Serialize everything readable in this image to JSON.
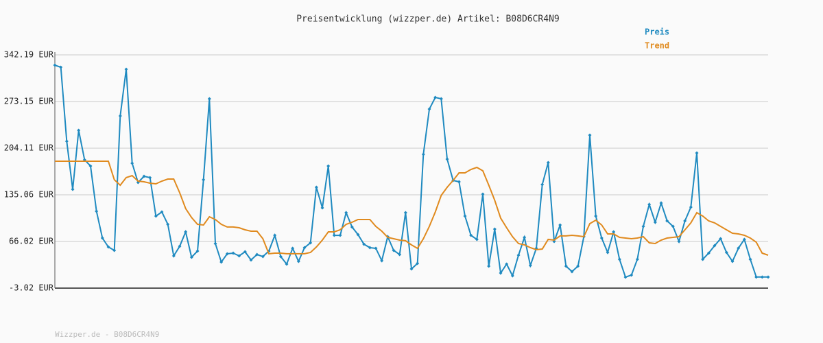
{
  "chart_data": {
    "type": "line",
    "title": "Preisentwicklung (wizzper.de) Artikel: B08D6CR4N9",
    "footer": "Wizzper.de - B08D6CR4N9",
    "ylim": [
      -3.02,
      342.19
    ],
    "yticks": [
      {
        "value": -3.02,
        "label": "-3.02 EUR"
      },
      {
        "value": 66.02,
        "label": "66.02 EUR"
      },
      {
        "value": 135.06,
        "label": "135.06 EUR"
      },
      {
        "value": 204.11,
        "label": "204.11 EUR"
      },
      {
        "value": 273.15,
        "label": "273.15 EUR"
      },
      {
        "value": 342.19,
        "label": "342.19 EUR"
      }
    ],
    "grid": true,
    "legend": "top-right",
    "series": [
      {
        "name": "Preis",
        "color": "#1f8ac0",
        "markers": true,
        "values": [
          326.9,
          323.9,
          214.3,
          143.2,
          230.5,
          186.9,
          177.7,
          110.7,
          71.1,
          57.9,
          52.8,
          251.8,
          320.9,
          181.8,
          153.3,
          162.5,
          160.5,
          103.6,
          109.7,
          91.4,
          44.7,
          58.9,
          80.2,
          42.7,
          51.8,
          157.4,
          277.2,
          62.9,
          35.6,
          47.8,
          48.8,
          44.7,
          50.8,
          38.6,
          46.7,
          43.7,
          51.8,
          75.1,
          43.7,
          32.5,
          55.9,
          36.6,
          56.9,
          64.0,
          146.2,
          115.8,
          177.7,
          75.1,
          75.1,
          108.7,
          87.4,
          76.2,
          62.0,
          56.9,
          55.9,
          37.6,
          73.1,
          52.8,
          46.7,
          108.7,
          25.4,
          33.5,
          195.0,
          262.0,
          279.2,
          277.2,
          187.9,
          156.4,
          154.4,
          103.6,
          75.1,
          69.1,
          136.1,
          29.5,
          84.3,
          19.3,
          32.5,
          15.3,
          45.7,
          72.1,
          30.5,
          55.9,
          150.3,
          182.8,
          66.0,
          90.4,
          29.5,
          21.4,
          29.5,
          73.1,
          223.4,
          103.6,
          71.1,
          49.8,
          80.2,
          39.6,
          13.2,
          16.3,
          39.6,
          88.4,
          120.9,
          94.5,
          122.9,
          96.5,
          88.4,
          66.0,
          96.5,
          116.8,
          197.0,
          39.6,
          48.8,
          59.9,
          70.1,
          49.8,
          36.6,
          56.1,
          69.1,
          39.6,
          13.4,
          13.4,
          13.4
        ]
      },
      {
        "name": "Trend",
        "color": "#e08a1e",
        "markers": false,
        "values": [
          184.8,
          184.8,
          184.8,
          184.8,
          184.8,
          184.8,
          184.8,
          184.8,
          184.8,
          184.8,
          157.4,
          149.3,
          160.5,
          163.5,
          155.4,
          154.4,
          152.3,
          151.3,
          155.4,
          158.4,
          158.4,
          138.1,
          114.8,
          101.6,
          91.4,
          90.4,
          102.6,
          98.5,
          91.4,
          87.4,
          87.4,
          86.3,
          83.3,
          81.3,
          81.3,
          70.1,
          47.8,
          48.8,
          48.8,
          47.8,
          47.8,
          47.8,
          47.8,
          49.8,
          57.9,
          68.1,
          80.2,
          80.2,
          83.3,
          91.4,
          94.5,
          98.5,
          98.5,
          98.5,
          88.4,
          81.3,
          72.1,
          70.1,
          68.1,
          67.1,
          60.9,
          55.9,
          70.1,
          88.4,
          109.7,
          134.1,
          146.2,
          156.4,
          167.6,
          167.6,
          172.6,
          175.7,
          170.6,
          149.3,
          127.0,
          100.6,
          86.3,
          73.1,
          63.0,
          60.9,
          56.9,
          53.8,
          54.9,
          69.1,
          68.1,
          74.2,
          74.2,
          75.2,
          74.2,
          73.1,
          92.4,
          97.5,
          90.4,
          77.2,
          77.2,
          72.1,
          71.1,
          70.1,
          71.1,
          73.1,
          64.0,
          63.0,
          68.1,
          71.1,
          72.1,
          73.1,
          83.3,
          93.5,
          108.7,
          103.6,
          96.5,
          93.5,
          88.4,
          83.3,
          78.2,
          77.2,
          75.2,
          71.1,
          65.0,
          48.8,
          45.7
        ]
      }
    ]
  }
}
